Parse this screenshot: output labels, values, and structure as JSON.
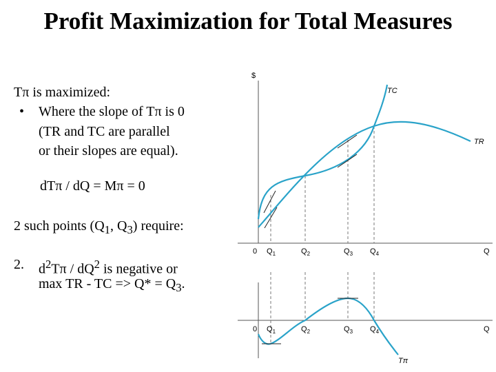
{
  "slide": {
    "title": "Profit Maximization for Total Measures",
    "line1": "Tπ is maximized:",
    "bullet": "•",
    "line2": "Where the slope of Tπ is 0",
    "line3": "(TR and TC are parallel",
    "line4": "or their slopes are equal).",
    "formula": "dTπ / dQ = Mπ = 0",
    "points_a": "2 such points (Q",
    "points_sub1": "1",
    "points_b": ", Q",
    "points_sub3": "3",
    "points_c": ") require:",
    "cond_num": "2.",
    "cond_a": "d",
    "cond_sup1": "2",
    "cond_b": "Tπ / dQ",
    "cond_sup2": "2",
    "cond_c": " is negative or",
    "cond_line2": "max TR - TC  =>  Q* = Q",
    "cond_sub3": "3",
    "cond_end": "."
  },
  "figure": {
    "curve_color": "#2aa3c9",
    "top": {
      "y_axis_label": "$",
      "tc_label": "TC",
      "tr_label": "TR",
      "x_axis_label": "Q",
      "origin_label": "0",
      "ticks": [
        {
          "letter": "Q",
          "sub": "1"
        },
        {
          "letter": "Q",
          "sub": "2"
        },
        {
          "letter": "Q",
          "sub": "3"
        },
        {
          "letter": "Q",
          "sub": "4"
        }
      ]
    },
    "bottom": {
      "x_axis_label": "Q",
      "origin_label": "0",
      "curve_label": "Tπ",
      "ticks": [
        {
          "letter": "Q",
          "sub": "1"
        },
        {
          "letter": "Q",
          "sub": "2"
        },
        {
          "letter": "Q",
          "sub": "3"
        },
        {
          "letter": "Q",
          "sub": "4"
        }
      ]
    }
  }
}
